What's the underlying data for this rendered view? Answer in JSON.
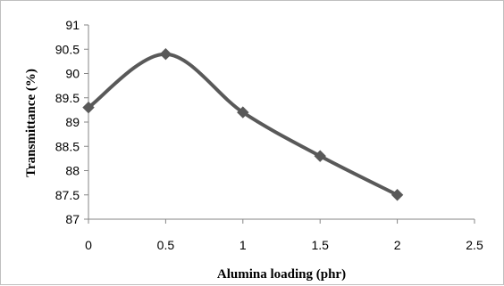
{
  "chart_data": {
    "type": "line",
    "xlabel": "Alumina loading (phr)",
    "ylabel": "Transmittance (%)",
    "xlim": [
      0,
      2.5
    ],
    "ylim": [
      87,
      91
    ],
    "x_ticks": [
      "0",
      "0.5",
      "1",
      "1.5",
      "2",
      "2.5"
    ],
    "y_ticks": [
      "87",
      "87.5",
      "88",
      "88.5",
      "89",
      "89.5",
      "90",
      "90.5",
      "91"
    ],
    "grid": false,
    "legend": "none",
    "smooth": true,
    "marker": "diamond",
    "line_color": "#595959",
    "series": [
      {
        "x": [
          0,
          0.5,
          1,
          1.5,
          2
        ],
        "values": [
          89.3,
          90.4,
          89.2,
          88.3,
          87.5
        ]
      }
    ]
  }
}
